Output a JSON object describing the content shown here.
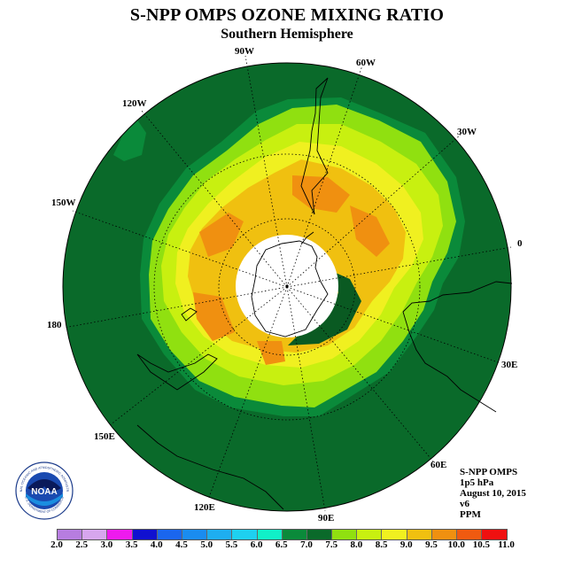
{
  "title": "S-NPP OMPS OZONE MIXING RATIO",
  "subtitle": "Southern Hemisphere",
  "longitude_labels": [
    "90W",
    "60W",
    "30W",
    "0",
    "30E",
    "60E",
    "90E",
    "120E",
    "150E",
    "180",
    "150W",
    "120W"
  ],
  "info": {
    "instrument": "S-NPP OMPS",
    "level": "1p5 hPa",
    "date": "August 10, 2015",
    "version": "v6",
    "units": "PPM"
  },
  "logo": {
    "text": "NOAA",
    "ring_text": "NATIONAL OCEANIC AND ATMOSPHERIC ADMINISTRATION",
    "bottom_text": "U.S. DEPARTMENT OF COMMERCE"
  },
  "colorbar": {
    "ticks": [
      "2.0",
      "2.5",
      "3.0",
      "3.5",
      "4.0",
      "4.5",
      "5.0",
      "5.5",
      "6.0",
      "6.5",
      "7.0",
      "7.5",
      "8.0",
      "8.5",
      "9.0",
      "9.5",
      "10.0",
      "10.5",
      "11.0"
    ],
    "colors": [
      "#b77de0",
      "#d7a6ee",
      "#ee1aee",
      "#1010d0",
      "#1a66ee",
      "#1a8cf0",
      "#1eaef0",
      "#1ed0f0",
      "#10f0c8",
      "#0a8a3a",
      "#0a6a2a",
      "#90e010",
      "#c8f010",
      "#f0f020",
      "#f0c010",
      "#f09010",
      "#f05a10",
      "#f01010",
      "#7a4a30"
    ]
  },
  "map_colors": {
    "outer": "#0a6a2a",
    "dark_inner": "#0a5a22",
    "mid_green": "#0a8a3a",
    "light_green": "#90e010",
    "yellow_green": "#c8f010",
    "yellow": "#f0f020",
    "gold": "#f0c010",
    "orange": "#f09010",
    "night": "#ffffff"
  }
}
